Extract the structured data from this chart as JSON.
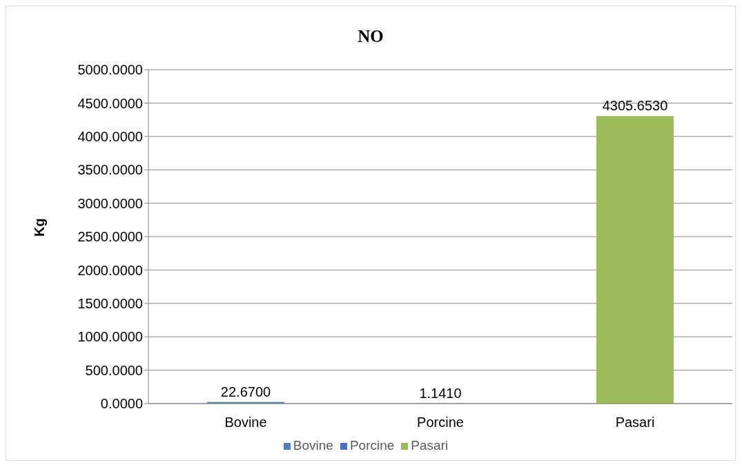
{
  "chart_data": {
    "type": "bar",
    "title": "NO",
    "ylabel": "Kg",
    "categories": [
      "Bovine",
      "Porcine",
      "Pasari"
    ],
    "series": [
      {
        "name": "Bovine",
        "color": "#4f81bd",
        "values": [
          22.67,
          null,
          null
        ],
        "value_labels": [
          "22.6700",
          null,
          null
        ]
      },
      {
        "name": "Porcine",
        "color": "#4472c4",
        "values": [
          null,
          1.141,
          null
        ],
        "value_labels": [
          null,
          "1.1410",
          null
        ]
      },
      {
        "name": "Pasari",
        "color": "#9bbb59",
        "values": [
          null,
          null,
          4305.653
        ],
        "value_labels": [
          null,
          null,
          "4305.6530"
        ]
      }
    ],
    "ylim": [
      0,
      5000
    ],
    "yticks": [
      {
        "value": 0,
        "label": "0.0000"
      },
      {
        "value": 500,
        "label": "500.0000"
      },
      {
        "value": 1000,
        "label": "1000.0000"
      },
      {
        "value": 1500,
        "label": "1500.0000"
      },
      {
        "value": 2000,
        "label": "2000.0000"
      },
      {
        "value": 2500,
        "label": "2500.0000"
      },
      {
        "value": 3000,
        "label": "3000.0000"
      },
      {
        "value": 3500,
        "label": "3500.0000"
      },
      {
        "value": 4000,
        "label": "4000.0000"
      },
      {
        "value": 4500,
        "label": "4500.0000"
      },
      {
        "value": 5000,
        "label": "5000.0000"
      }
    ],
    "grid": "y",
    "legend": "bottom"
  }
}
